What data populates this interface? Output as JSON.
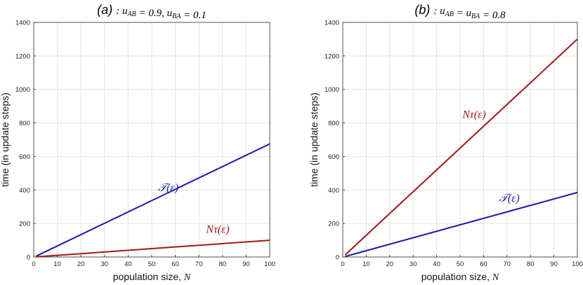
{
  "chart_data": [
    {
      "type": "line",
      "title_prefix": "(a)",
      "title_math": ": u_AB = 0.9,  u_BA = 0.1",
      "xlabel": "population size,",
      "xlabel_var": "N",
      "ylabel": "time (in update steps)",
      "xlim": [
        0,
        100
      ],
      "ylim": [
        0,
        1400
      ],
      "xticks": [
        0,
        10,
        20,
        30,
        40,
        50,
        60,
        70,
        80,
        90,
        100
      ],
      "yticks": [
        0,
        200,
        400,
        600,
        800,
        1000,
        1200,
        1400
      ],
      "grid": true,
      "series": [
        {
          "name": "𝒯(ε)",
          "color": "#1a1aa6",
          "x": [
            1,
            100
          ],
          "y": [
            5,
            675
          ],
          "label_at": [
            57,
            392
          ]
        },
        {
          "name": "Nτ(ε)",
          "color": "#a31515",
          "x": [
            1,
            100
          ],
          "y": [
            1,
            100
          ],
          "label_at": [
            78,
            145
          ]
        }
      ]
    },
    {
      "type": "line",
      "title_prefix": "(b)",
      "title_math": ": u_AB = u_BA = 0.8",
      "xlabel": "population size,",
      "xlabel_var": "N",
      "ylabel": "time (in update steps)",
      "xlim": [
        0,
        100
      ],
      "ylim": [
        0,
        1400
      ],
      "xticks": [
        0,
        10,
        20,
        30,
        40,
        50,
        60,
        70,
        80,
        90,
        100
      ],
      "yticks": [
        0,
        200,
        400,
        600,
        800,
        1000,
        1200,
        1400
      ],
      "grid": true,
      "series": [
        {
          "name": "Nτ(ε)",
          "color": "#a31515",
          "x": [
            1,
            100
          ],
          "y": [
            12,
            1300
          ],
          "label_at": [
            56,
            830
          ]
        },
        {
          "name": "𝒯(ε)",
          "color": "#1a1aa6",
          "x": [
            1,
            100
          ],
          "y": [
            3,
            385
          ],
          "label_at": [
            71,
            330
          ]
        }
      ]
    }
  ]
}
